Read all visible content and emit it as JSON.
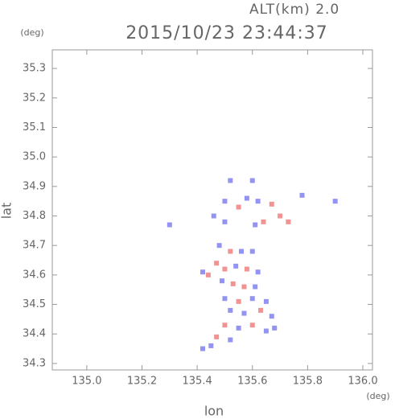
{
  "chart_data": {
    "type": "scatter",
    "title": "2015/10/23 23:44:37",
    "subtitle": "ALT(km) 2.0",
    "x_unit": "(deg)",
    "y_unit": "(deg)",
    "x_label": "lon",
    "y_label": "lat",
    "xlim": [
      134.875,
      136.035
    ],
    "ylim": [
      34.278,
      35.363
    ],
    "xticks": [
      {
        "value": 135.0,
        "label": "135.0"
      },
      {
        "value": 135.2,
        "label": "135.2"
      },
      {
        "value": 135.4,
        "label": "135.4"
      },
      {
        "value": 135.6,
        "label": "135.6"
      },
      {
        "value": 135.8,
        "label": "135.8"
      },
      {
        "value": 136.0,
        "label": "136.0"
      }
    ],
    "yticks": [
      {
        "value": 34.3,
        "label": "34.3"
      },
      {
        "value": 34.4,
        "label": "34.4"
      },
      {
        "value": 34.5,
        "label": "34.5"
      },
      {
        "value": 34.6,
        "label": "34.6"
      },
      {
        "value": 34.7,
        "label": "34.7"
      },
      {
        "value": 34.8,
        "label": "34.8"
      },
      {
        "value": 34.9,
        "label": "34.9"
      },
      {
        "value": 35.0,
        "label": "35.0"
      },
      {
        "value": 35.1,
        "label": "35.1"
      },
      {
        "value": 35.2,
        "label": "35.2"
      },
      {
        "value": 35.3,
        "label": "35.3"
      }
    ],
    "x": [
      135.52,
      135.6,
      135.5,
      135.55,
      135.58,
      135.62,
      135.64,
      135.61,
      135.67,
      135.7,
      135.73,
      135.78,
      135.46,
      135.5,
      135.48,
      135.52,
      135.56,
      135.6,
      135.47,
      135.5,
      135.54,
      135.58,
      135.62,
      135.49,
      135.53,
      135.57,
      135.61,
      135.44,
      135.42,
      135.5,
      135.55,
      135.6,
      135.65,
      135.52,
      135.57,
      135.63,
      135.67,
      135.5,
      135.55,
      135.6,
      135.65,
      135.68,
      135.47,
      135.52,
      135.45,
      135.42,
      135.3,
      135.9
    ],
    "y": [
      34.92,
      34.92,
      34.85,
      34.83,
      34.86,
      34.85,
      34.78,
      34.77,
      34.84,
      34.8,
      34.78,
      34.87,
      34.8,
      34.78,
      34.7,
      34.68,
      34.68,
      34.68,
      34.64,
      34.62,
      34.63,
      34.62,
      34.61,
      34.58,
      34.57,
      34.56,
      34.56,
      34.6,
      34.61,
      34.52,
      34.51,
      34.52,
      34.51,
      34.48,
      34.47,
      34.48,
      34.46,
      34.43,
      34.42,
      34.43,
      34.41,
      34.42,
      34.39,
      34.38,
      34.36,
      34.35,
      34.77,
      34.85
    ],
    "colors": [
      "#8080f0",
      "#8080f0",
      "#8080f0",
      "#f08080",
      "#8080f0",
      "#8080f0",
      "#f08080",
      "#8080f0",
      "#f08080",
      "#f08080",
      "#f08080",
      "#8080f0",
      "#8080f0",
      "#8080f0",
      "#8080f0",
      "#f08080",
      "#8080f0",
      "#8080f0",
      "#f08080",
      "#f08080",
      "#8080f0",
      "#f08080",
      "#8080f0",
      "#8080f0",
      "#f08080",
      "#f08080",
      "#8080f0",
      "#f08080",
      "#8080f0",
      "#8080f0",
      "#f08080",
      "#8080f0",
      "#8080f0",
      "#8080f0",
      "#8080f0",
      "#f08080",
      "#8080f0",
      "#f08080",
      "#8080f0",
      "#f08080",
      "#8080f0",
      "#8080f0",
      "#f08080",
      "#8080f0",
      "#8080f0",
      "#8080f0",
      "#8080f0",
      "#8080f0"
    ]
  }
}
